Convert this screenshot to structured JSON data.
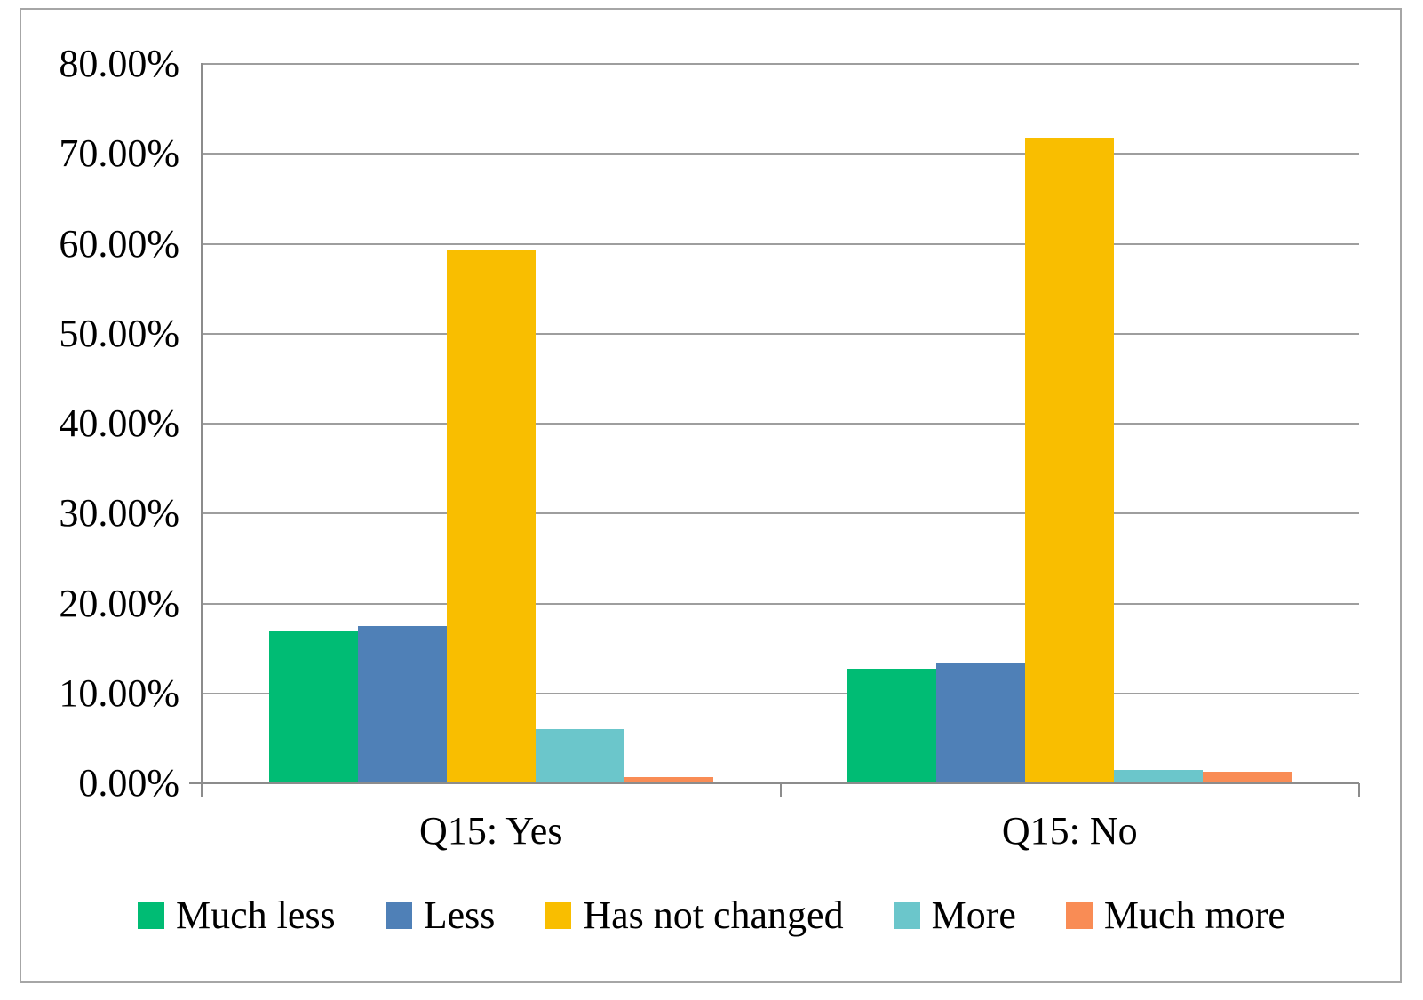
{
  "chart_data": {
    "type": "bar",
    "title": "",
    "categories": [
      "Q15: Yes",
      "Q15: No"
    ],
    "series": [
      {
        "name": "Much less",
        "color": "#00BC74",
        "values": [
          16.8,
          12.6
        ]
      },
      {
        "name": "Less",
        "color": "#4F80B7",
        "values": [
          17.4,
          13.2
        ]
      },
      {
        "name": "Has not changed",
        "color": "#F9BE00",
        "values": [
          59.3,
          71.7
        ]
      },
      {
        "name": "More",
        "color": "#6BC6CB",
        "values": [
          5.9,
          1.4
        ]
      },
      {
        "name": "Much more",
        "color": "#F98C55",
        "values": [
          0.6,
          1.2
        ]
      }
    ],
    "xlabel": "",
    "ylabel": "",
    "ylim": [
      0,
      80
    ],
    "ytick_step": 10,
    "ytick_labels": [
      "0.00%",
      "10.00%",
      "20.00%",
      "30.00%",
      "40.00%",
      "50.00%",
      "60.00%",
      "70.00%",
      "80.00%"
    ],
    "grid": true,
    "legend_position": "bottom"
  },
  "style": {
    "background": "#FFFFFF",
    "border_color": "#A6A6A6",
    "gridline_color": "#9E9E9E",
    "axis_color": "#8C8C8C",
    "text_color": "#000000"
  }
}
